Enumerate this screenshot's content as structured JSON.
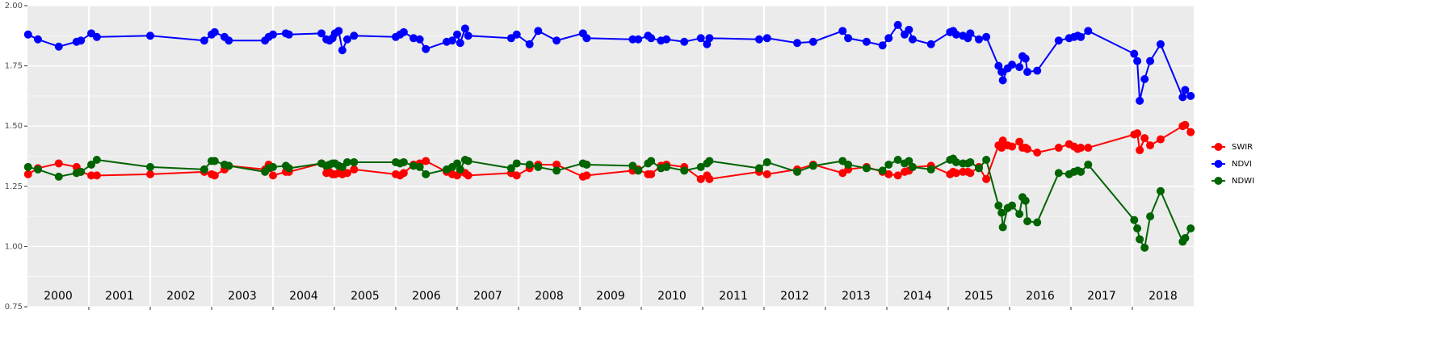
{
  "chart_data": {
    "type": "line",
    "x": [
      2000.01,
      2000.17,
      2000.51,
      2000.8,
      2000.87,
      2001.04,
      2001.13,
      2002.0,
      2002.88,
      2003.0,
      2003.05,
      2003.21,
      2003.28,
      2003.87,
      2003.93,
      2004.0,
      2004.21,
      2004.26,
      2004.79,
      2004.87,
      2004.92,
      2004.97,
      2005.01,
      2005.07,
      2005.13,
      2005.21,
      2005.32,
      2006.0,
      2006.07,
      2006.13,
      2006.29,
      2006.39,
      2006.49,
      2006.83,
      2006.92,
      2007.0,
      2007.05,
      2007.13,
      2007.18,
      2007.88,
      2007.97,
      2008.18,
      2008.32,
      2008.62,
      2009.05,
      2009.11,
      2009.86,
      2009.95,
      2010.11,
      2010.16,
      2010.32,
      2010.41,
      2010.7,
      2010.97,
      2011.07,
      2011.11,
      2011.92,
      2012.05,
      2012.54,
      2012.8,
      2013.28,
      2013.37,
      2013.67,
      2013.93,
      2014.03,
      2014.18,
      2014.29,
      2014.36,
      2014.42,
      2014.72,
      2015.03,
      2015.08,
      2015.13,
      2015.24,
      2015.32,
      2015.36,
      2015.5,
      2015.62,
      2015.82,
      2015.87,
      2015.89,
      2015.97,
      2016.04,
      2016.16,
      2016.21,
      2016.26,
      2016.29,
      2016.45,
      2016.8,
      2016.97,
      2017.05,
      2017.11,
      2017.16,
      2017.28,
      2018.03,
      2018.08,
      2018.12,
      2018.2,
      2018.29,
      2018.46,
      2018.82,
      2018.86,
      2018.95
    ],
    "series": [
      {
        "name": "SWIR",
        "color": "#ff0000",
        "values": [
          1.3,
          1.325,
          1.345,
          1.33,
          1.31,
          1.295,
          1.295,
          1.3,
          1.31,
          1.3,
          1.295,
          1.32,
          1.335,
          1.32,
          1.34,
          1.295,
          1.31,
          1.31,
          1.345,
          1.305,
          1.31,
          1.3,
          1.3,
          1.305,
          1.3,
          1.305,
          1.32,
          1.3,
          1.295,
          1.305,
          1.34,
          1.345,
          1.355,
          1.31,
          1.3,
          1.295,
          1.31,
          1.305,
          1.295,
          1.305,
          1.295,
          1.325,
          1.34,
          1.34,
          1.29,
          1.295,
          1.315,
          1.32,
          1.3,
          1.3,
          1.335,
          1.34,
          1.33,
          1.28,
          1.295,
          1.28,
          1.31,
          1.3,
          1.32,
          1.34,
          1.305,
          1.32,
          1.33,
          1.31,
          1.3,
          1.295,
          1.31,
          1.315,
          1.33,
          1.335,
          1.3,
          1.31,
          1.305,
          1.31,
          1.31,
          1.305,
          1.33,
          1.28,
          1.42,
          1.41,
          1.44,
          1.42,
          1.415,
          1.435,
          1.41,
          1.41,
          1.405,
          1.39,
          1.41,
          1.425,
          1.415,
          1.405,
          1.41,
          1.41,
          1.465,
          1.47,
          1.4,
          1.45,
          1.42,
          1.445,
          1.5,
          1.505,
          1.475
        ]
      },
      {
        "name": "NDVI",
        "color": "#0000ff",
        "values": [
          1.88,
          1.86,
          1.83,
          1.85,
          1.855,
          1.885,
          1.87,
          1.875,
          1.855,
          1.88,
          1.89,
          1.87,
          1.855,
          1.855,
          1.87,
          1.88,
          1.885,
          1.88,
          1.885,
          1.86,
          1.855,
          1.865,
          1.885,
          1.895,
          1.815,
          1.86,
          1.875,
          1.87,
          1.88,
          1.89,
          1.865,
          1.86,
          1.82,
          1.85,
          1.855,
          1.88,
          1.845,
          1.905,
          1.875,
          1.865,
          1.88,
          1.84,
          1.895,
          1.855,
          1.885,
          1.865,
          1.86,
          1.86,
          1.875,
          1.865,
          1.855,
          1.86,
          1.85,
          1.865,
          1.84,
          1.865,
          1.86,
          1.865,
          1.845,
          1.85,
          1.895,
          1.865,
          1.85,
          1.835,
          1.865,
          1.92,
          1.88,
          1.9,
          1.86,
          1.84,
          1.89,
          1.895,
          1.88,
          1.875,
          1.865,
          1.885,
          1.86,
          1.87,
          1.75,
          1.725,
          1.69,
          1.74,
          1.755,
          1.745,
          1.79,
          1.78,
          1.725,
          1.73,
          1.855,
          1.865,
          1.87,
          1.875,
          1.87,
          1.895,
          1.8,
          1.77,
          1.605,
          1.695,
          1.77,
          1.84,
          1.62,
          1.65,
          1.625
        ]
      },
      {
        "name": "NDWI",
        "color": "#006400",
        "values": [
          1.33,
          1.32,
          1.29,
          1.305,
          1.31,
          1.34,
          1.36,
          1.33,
          1.32,
          1.355,
          1.355,
          1.34,
          1.335,
          1.31,
          1.325,
          1.33,
          1.335,
          1.325,
          1.345,
          1.335,
          1.34,
          1.345,
          1.345,
          1.335,
          1.33,
          1.35,
          1.35,
          1.35,
          1.345,
          1.35,
          1.335,
          1.33,
          1.3,
          1.32,
          1.33,
          1.345,
          1.32,
          1.36,
          1.355,
          1.325,
          1.345,
          1.34,
          1.33,
          1.315,
          1.345,
          1.34,
          1.335,
          1.315,
          1.345,
          1.355,
          1.325,
          1.33,
          1.315,
          1.33,
          1.345,
          1.355,
          1.325,
          1.35,
          1.31,
          1.335,
          1.355,
          1.34,
          1.325,
          1.315,
          1.34,
          1.36,
          1.345,
          1.355,
          1.33,
          1.32,
          1.36,
          1.365,
          1.35,
          1.345,
          1.345,
          1.35,
          1.325,
          1.36,
          1.17,
          1.14,
          1.08,
          1.16,
          1.17,
          1.135,
          1.205,
          1.19,
          1.105,
          1.1,
          1.305,
          1.3,
          1.31,
          1.315,
          1.31,
          1.34,
          1.11,
          1.075,
          1.03,
          0.995,
          1.125,
          1.23,
          1.02,
          1.035,
          1.075
        ]
      }
    ],
    "legend_order": [
      0,
      1,
      2
    ],
    "year_labels": [
      "2000",
      "2001",
      "2002",
      "2003",
      "2004",
      "2005",
      "2006",
      "2007",
      "2008",
      "2009",
      "2010",
      "2011",
      "2012",
      "2013",
      "2014",
      "2015",
      "2016",
      "2017",
      "2018"
    ],
    "xlim": [
      2000,
      2019
    ],
    "xticks": [
      2001,
      2002,
      2003,
      2004,
      2005,
      2006,
      2007,
      2008,
      2009,
      2010,
      2011,
      2012,
      2013,
      2014,
      2015,
      2016,
      2017,
      2018
    ],
    "ylim": [
      0.75,
      2.0
    ],
    "yticks": [
      {
        "value": 0.75,
        "label": "0.75"
      },
      {
        "value": 1.0,
        "label": "1.00"
      },
      {
        "value": 1.25,
        "label": "1.25"
      },
      {
        "value": 1.5,
        "label": "1.50"
      },
      {
        "value": 1.75,
        "label": "1.75"
      },
      {
        "value": 2.0,
        "label": "2.00"
      }
    ],
    "grid": true,
    "legend": "right"
  }
}
